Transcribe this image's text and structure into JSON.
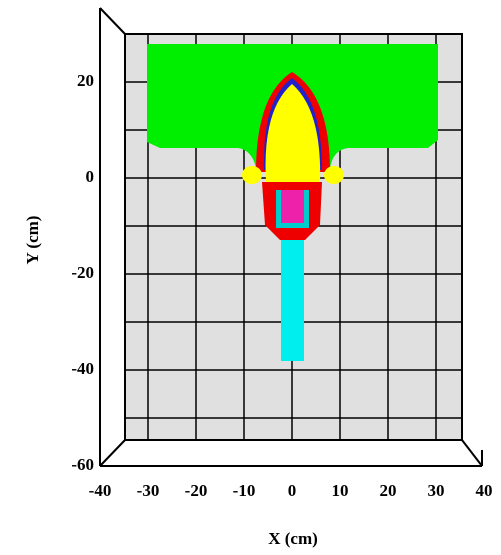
{
  "chart_data": {
    "type": "geometry",
    "xlabel": "X (cm)",
    "ylabel": "Y (cm)",
    "xlim": [
      -40,
      40
    ],
    "ylim": [
      -60,
      30
    ],
    "xticks": [
      -40,
      -30,
      -20,
      -10,
      0,
      10,
      20,
      30,
      40
    ],
    "yticks": [
      -60,
      -40,
      -20,
      0,
      20
    ],
    "grid": true
  }
}
